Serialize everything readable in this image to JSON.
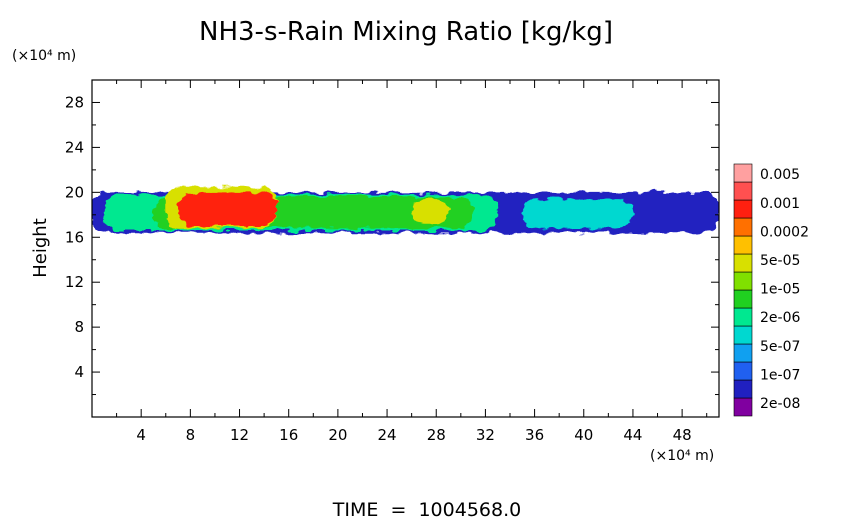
{
  "chart_data": {
    "type": "heatmap",
    "title": "NH3-s-Rain Mixing Ratio [kg/kg]",
    "ylabel": "Height",
    "y_unit": "(×10⁴ m)",
    "x_unit": "(×10⁴ m)",
    "x_ticks": [
      "4",
      "8",
      "12",
      "16",
      "20",
      "24",
      "28",
      "32",
      "36",
      "40",
      "44",
      "48"
    ],
    "y_ticks": [
      "4",
      "8",
      "12",
      "16",
      "20",
      "24",
      "28"
    ],
    "xlim": [
      0,
      51
    ],
    "ylim": [
      0,
      30
    ],
    "footer": "TIME  =  1004568.0",
    "colorbar": {
      "colors": [
        "#8000a0",
        "#2020c0",
        "#2060f0",
        "#10a0f0",
        "#00d8d0",
        "#00e890",
        "#20d020",
        "#80e000",
        "#d8e000",
        "#ffc000",
        "#ff7000",
        "#ff2010",
        "#ff5050",
        "#ffa0a0"
      ],
      "labels": [
        "2e-08",
        "1e-07",
        "5e-07",
        "2e-06",
        "1e-05",
        "5e-05",
        "0.0002",
        "0.001",
        "0.005"
      ]
    },
    "regions": [
      {
        "level": 1,
        "color": "#2020c0",
        "x": [
          0,
          51
        ],
        "y": [
          16.4,
          20.0
        ]
      },
      {
        "level": 5,
        "color": "#00e890",
        "x": [
          1,
          33
        ],
        "y": [
          16.6,
          19.8
        ]
      },
      {
        "level": 6,
        "color": "#20d020",
        "x": [
          5,
          31
        ],
        "y": [
          16.8,
          19.6
        ]
      },
      {
        "level": 8,
        "color": "#d8e000",
        "x": [
          6,
          15
        ],
        "y": [
          16.8,
          20.5
        ]
      },
      {
        "level": 11,
        "color": "#ff2010",
        "x": [
          7,
          15
        ],
        "y": [
          17.0,
          20.0
        ]
      },
      {
        "level": 4,
        "color": "#00d8d0",
        "x": [
          35,
          44
        ],
        "y": [
          16.8,
          19.4
        ]
      },
      {
        "level": 8,
        "color": "#d8e000",
        "x": [
          26,
          29
        ],
        "y": [
          17.2,
          19.4
        ]
      }
    ]
  }
}
